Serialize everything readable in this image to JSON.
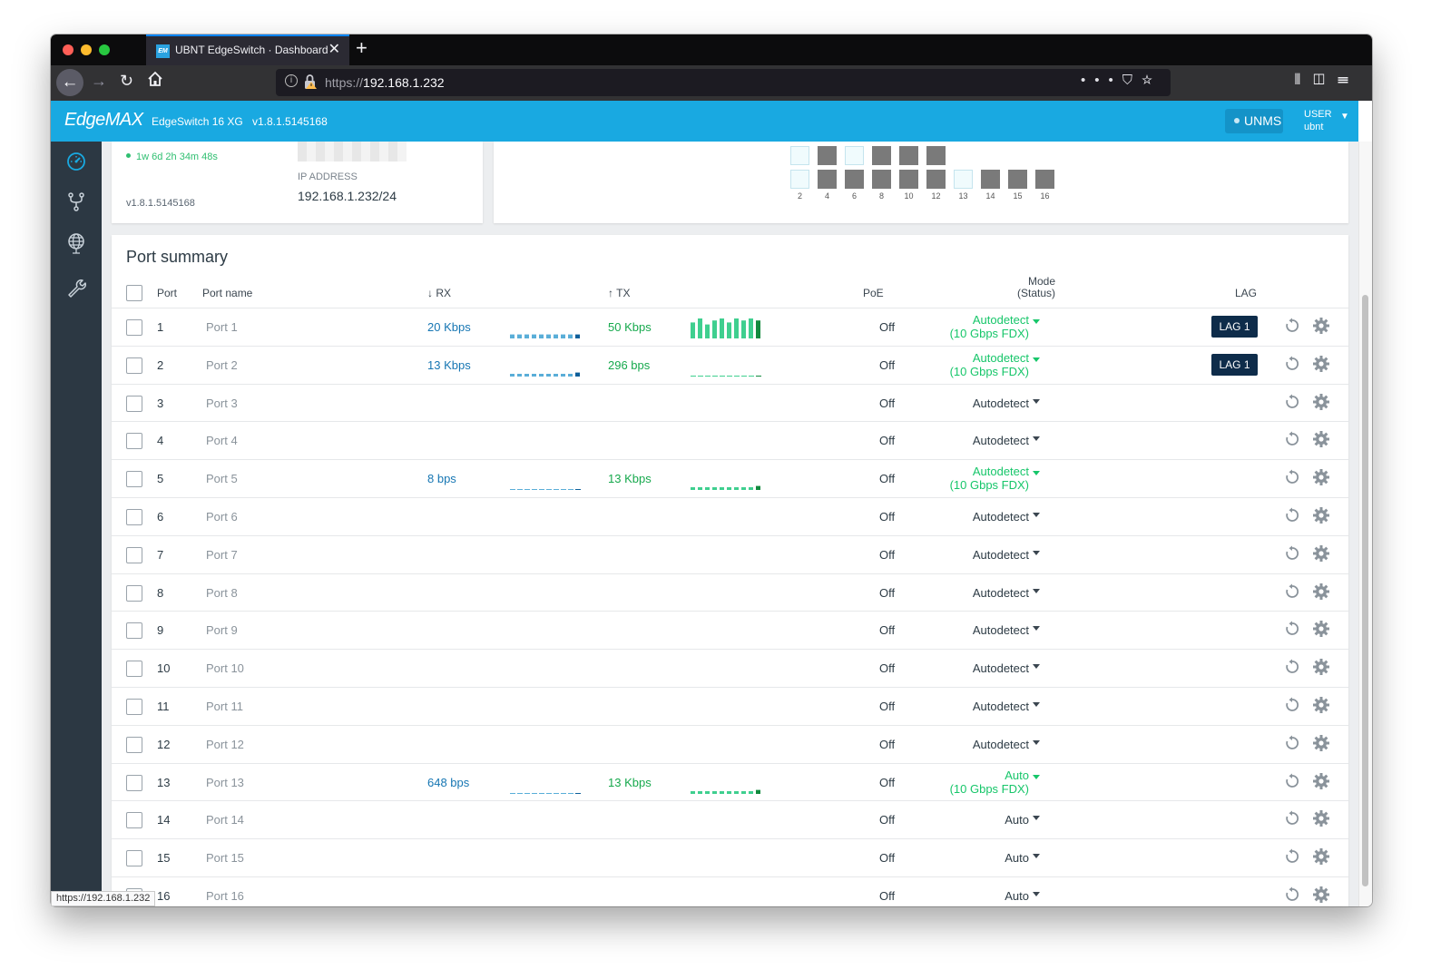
{
  "browser": {
    "tab_title": "UBNT EdgeSwitch · Dashboard",
    "favicon_text": "EM",
    "url_scheme": "https://",
    "url_host": "192.168.1.232",
    "status_url": "https://192.168.1.232"
  },
  "header": {
    "logo": "EdgeMAX",
    "model": "EdgeSwitch 16 XG",
    "version": "v1.8.1.5145168",
    "unms_label": "UNMS",
    "user_label": "USER",
    "user_name": "ubnt",
    "brand_color": "#19a9e1"
  },
  "sidebar": {
    "items": [
      "dashboard-icon",
      "vlan-icon",
      "network-icon",
      "tools-icon"
    ]
  },
  "device_card": {
    "uptime": "1w 6d 2h 34m 48s",
    "firmware": "v1.8.1.5145168",
    "ip_label": "IP ADDRESS",
    "ip_value": "192.168.1.232/24"
  },
  "port_map": {
    "top_row": [
      "up",
      "down",
      "up",
      "down",
      "down",
      "down"
    ],
    "bottom_row": [
      {
        "label": "2",
        "state": "up"
      },
      {
        "label": "4",
        "state": "down"
      },
      {
        "label": "6",
        "state": "down"
      },
      {
        "label": "8",
        "state": "down"
      },
      {
        "label": "10",
        "state": "down"
      },
      {
        "label": "12",
        "state": "down"
      },
      {
        "label": "13",
        "state": "up"
      },
      {
        "label": "14",
        "state": "down"
      },
      {
        "label": "15",
        "state": "down"
      },
      {
        "label": "16",
        "state": "down"
      }
    ]
  },
  "port_summary": {
    "title": "Port summary",
    "headers": {
      "port": "Port",
      "port_name": "Port name",
      "rx": "↓ RX",
      "tx": "↑ TX",
      "poe": "PoE",
      "mode": "Mode",
      "mode_status": "(Status)",
      "lag": "LAG"
    },
    "rows": [
      {
        "num": "1",
        "name": "Port 1",
        "rx": "20 Kbps",
        "tx": "50 Kbps",
        "poe": "Off",
        "mode": "Autodetect",
        "status": "(10 Gbps FDX)",
        "lag": "LAG 1",
        "rx_spark": [
          2,
          2,
          2,
          2,
          2,
          2,
          2,
          2,
          2,
          2
        ],
        "tx_spark": [
          8,
          10,
          7,
          9,
          10,
          8,
          10,
          9,
          10,
          9
        ]
      },
      {
        "num": "2",
        "name": "Port 2",
        "rx": "13 Kbps",
        "tx": "296 bps",
        "poe": "Off",
        "mode": "Autodetect",
        "status": "(10 Gbps FDX)",
        "lag": "LAG 1",
        "rx_spark": [
          1,
          1,
          1,
          1,
          1,
          1,
          1,
          1,
          1,
          2
        ],
        "tx_spark": [
          0,
          0,
          0,
          0,
          0,
          0,
          0,
          0,
          0,
          0
        ]
      },
      {
        "num": "3",
        "name": "Port 3",
        "rx": "",
        "tx": "",
        "poe": "Off",
        "mode": "Autodetect",
        "status": "",
        "lag": ""
      },
      {
        "num": "4",
        "name": "Port 4",
        "rx": "",
        "tx": "",
        "poe": "Off",
        "mode": "Autodetect",
        "status": "",
        "lag": ""
      },
      {
        "num": "5",
        "name": "Port 5",
        "rx": "8 bps",
        "tx": "13 Kbps",
        "poe": "Off",
        "mode": "Autodetect",
        "status": "(10 Gbps FDX)",
        "lag": "",
        "rx_spark": [
          0,
          0,
          0,
          0,
          0,
          0,
          0,
          0,
          0,
          0
        ],
        "tx_spark": [
          1,
          1,
          1,
          1,
          1,
          1,
          1,
          1,
          1,
          2
        ]
      },
      {
        "num": "6",
        "name": "Port 6",
        "rx": "",
        "tx": "",
        "poe": "Off",
        "mode": "Autodetect",
        "status": "",
        "lag": ""
      },
      {
        "num": "7",
        "name": "Port 7",
        "rx": "",
        "tx": "",
        "poe": "Off",
        "mode": "Autodetect",
        "status": "",
        "lag": ""
      },
      {
        "num": "8",
        "name": "Port 8",
        "rx": "",
        "tx": "",
        "poe": "Off",
        "mode": "Autodetect",
        "status": "",
        "lag": ""
      },
      {
        "num": "9",
        "name": "Port 9",
        "rx": "",
        "tx": "",
        "poe": "Off",
        "mode": "Autodetect",
        "status": "",
        "lag": ""
      },
      {
        "num": "10",
        "name": "Port 10",
        "rx": "",
        "tx": "",
        "poe": "Off",
        "mode": "Autodetect",
        "status": "",
        "lag": ""
      },
      {
        "num": "11",
        "name": "Port 11",
        "rx": "",
        "tx": "",
        "poe": "Off",
        "mode": "Autodetect",
        "status": "",
        "lag": ""
      },
      {
        "num": "12",
        "name": "Port 12",
        "rx": "",
        "tx": "",
        "poe": "Off",
        "mode": "Autodetect",
        "status": "",
        "lag": ""
      },
      {
        "num": "13",
        "name": "Port 13",
        "rx": "648 bps",
        "tx": "13 Kbps",
        "poe": "Off",
        "mode": "Auto",
        "status": "(10 Gbps FDX)",
        "lag": "",
        "rx_spark": [
          0,
          0,
          0,
          0,
          0,
          0,
          0,
          0,
          0,
          0
        ],
        "tx_spark": [
          1,
          1,
          1,
          1,
          1,
          1,
          1,
          1,
          1,
          2
        ]
      },
      {
        "num": "14",
        "name": "Port 14",
        "rx": "",
        "tx": "",
        "poe": "Off",
        "mode": "Auto",
        "status": "",
        "lag": ""
      },
      {
        "num": "15",
        "name": "Port 15",
        "rx": "",
        "tx": "",
        "poe": "Off",
        "mode": "Auto",
        "status": "",
        "lag": ""
      },
      {
        "num": "16",
        "name": "Port 16",
        "rx": "",
        "tx": "",
        "poe": "Off",
        "mode": "Auto",
        "status": "",
        "lag": ""
      }
    ]
  }
}
